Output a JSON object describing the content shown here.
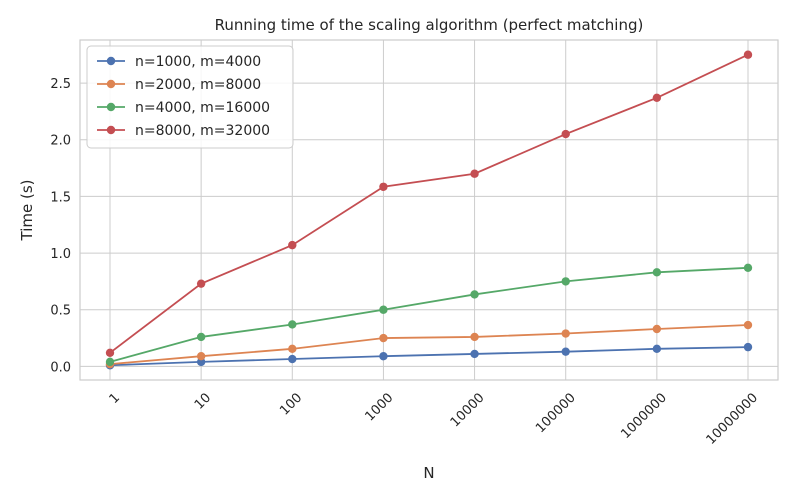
{
  "chart_data": {
    "type": "line",
    "title": "Running time of the scaling algorithm (perfect matching)",
    "xlabel": "N",
    "ylabel": "Time (s)",
    "categories": [
      "1",
      "10",
      "100",
      "1000",
      "10000",
      "100000",
      "1000000",
      "10000000"
    ],
    "ylim": [
      -0.12,
      2.88
    ],
    "yticks": [
      0.0,
      0.5,
      1.0,
      1.5,
      2.0,
      2.5
    ],
    "ytick_labels": [
      "0.0",
      "0.5",
      "1.0",
      "1.5",
      "2.0",
      "2.5"
    ],
    "grid": true,
    "legend_position": "top-left",
    "series": [
      {
        "name": "n=1000, m=4000",
        "color": "#4c72b0",
        "values": [
          0.01,
          0.04,
          0.065,
          0.09,
          0.11,
          0.13,
          0.155,
          0.17
        ]
      },
      {
        "name": "n=2000, m=8000",
        "color": "#dd8452",
        "values": [
          0.02,
          0.09,
          0.155,
          0.25,
          0.26,
          0.29,
          0.33,
          0.365
        ]
      },
      {
        "name": "n=4000, m=16000",
        "color": "#55a868",
        "values": [
          0.04,
          0.26,
          0.37,
          0.5,
          0.635,
          0.75,
          0.83,
          0.87
        ]
      },
      {
        "name": "n=8000, m=32000",
        "color": "#c44e52",
        "values": [
          0.12,
          0.73,
          1.07,
          1.585,
          1.7,
          2.05,
          2.37,
          2.75
        ]
      }
    ]
  }
}
